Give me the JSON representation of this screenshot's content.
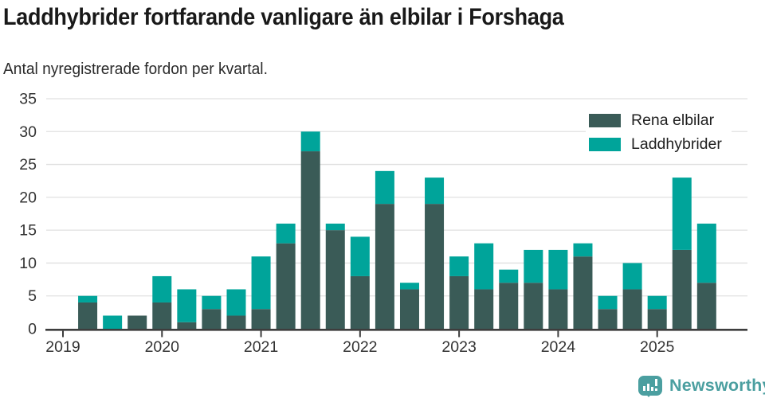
{
  "header": {
    "title": "Laddhybrider fortfarande vanligare än elbilar i Forshaga",
    "subtitle": "Antal nyregistrerade fordon per kvartal."
  },
  "chart_data": {
    "type": "bar",
    "stacked": true,
    "title": "Laddhybrider fortfarande vanligare än elbilar i Forshaga",
    "subtitle": "Antal nyregistrerade fordon per kvartal.",
    "x": [
      "2019 Q1",
      "2019 Q2",
      "2019 Q3",
      "2019 Q4",
      "2020 Q1",
      "2020 Q2",
      "2020 Q3",
      "2020 Q4",
      "2021 Q1",
      "2021 Q2",
      "2021 Q3",
      "2021 Q4",
      "2022 Q1",
      "2022 Q2",
      "2022 Q3",
      "2022 Q4",
      "2023 Q1",
      "2023 Q2",
      "2023 Q3",
      "2023 Q4",
      "2024 Q1",
      "2024 Q2",
      "2024 Q3",
      "2024 Q4",
      "2025 Q1",
      "2025 Q2",
      "2025 Q3"
    ],
    "series": [
      {
        "name": "Rena elbilar",
        "color": "#3a5b57",
        "values": [
          0,
          4,
          0,
          2,
          4,
          1,
          3,
          2,
          3,
          13,
          27,
          15,
          8,
          19,
          6,
          19,
          8,
          6,
          7,
          7,
          6,
          11,
          3,
          6,
          3,
          12,
          7
        ]
      },
      {
        "name": "Laddhybrider",
        "color": "#00a49a",
        "values": [
          0,
          1,
          2,
          0,
          4,
          5,
          2,
          4,
          8,
          3,
          3,
          1,
          6,
          5,
          1,
          4,
          3,
          7,
          2,
          5,
          6,
          2,
          2,
          4,
          2,
          11,
          9
        ]
      }
    ],
    "ylim": [
      0,
      35
    ],
    "yticks": [
      0,
      5,
      10,
      15,
      20,
      25,
      30,
      35
    ],
    "xticklabels": [
      "2019",
      "2020",
      "2021",
      "2022",
      "2023",
      "2024",
      "2025"
    ],
    "grid": "horizontal",
    "legend_position": "top-right"
  },
  "footer": {
    "brand": "Newsworthy"
  },
  "colors": {
    "brand": "#4b9fa0",
    "axis_text": "#333333",
    "gridline": "#e0e0e0",
    "baseline": "#3d3d3d"
  }
}
